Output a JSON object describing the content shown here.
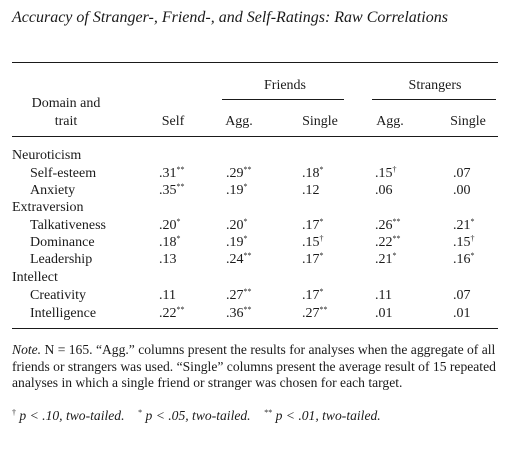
{
  "title": "Accuracy of Stranger-, Friend-, and Self-Ratings: Raw Correlations",
  "header": {
    "group_friends": "Friends",
    "group_strangers": "Strangers",
    "domain_line1": "Domain and",
    "domain_line2": "trait",
    "self": "Self",
    "friends_agg": "Agg.",
    "friends_single": "Single",
    "strangers_agg": "Agg.",
    "strangers_single": "Single"
  },
  "domains": [
    {
      "name": "Neuroticism",
      "rows": [
        {
          "trait": "Self-esteem",
          "cells": [
            [
              ".31",
              "**"
            ],
            [
              ".29",
              "**"
            ],
            [
              ".18",
              "*"
            ],
            [
              ".15",
              "†"
            ],
            [
              ".07",
              ""
            ]
          ]
        },
        {
          "trait": "Anxiety",
          "cells": [
            [
              ".35",
              "**"
            ],
            [
              ".19",
              "*"
            ],
            [
              ".12",
              ""
            ],
            [
              ".06",
              ""
            ],
            [
              ".00",
              ""
            ]
          ]
        }
      ]
    },
    {
      "name": "Extraversion",
      "rows": [
        {
          "trait": "Talkativeness",
          "cells": [
            [
              ".20",
              "*"
            ],
            [
              ".20",
              "*"
            ],
            [
              ".17",
              "*"
            ],
            [
              ".26",
              "**"
            ],
            [
              ".21",
              "*"
            ]
          ]
        },
        {
          "trait": "Dominance",
          "cells": [
            [
              ".18",
              "*"
            ],
            [
              ".19",
              "*"
            ],
            [
              ".15",
              "†"
            ],
            [
              ".22",
              "**"
            ],
            [
              ".15",
              "†"
            ]
          ]
        },
        {
          "trait": "Leadership",
          "cells": [
            [
              ".13",
              ""
            ],
            [
              ".24",
              "**"
            ],
            [
              ".17",
              "*"
            ],
            [
              ".21",
              "*"
            ],
            [
              ".16",
              "*"
            ]
          ]
        }
      ]
    },
    {
      "name": "Intellect",
      "rows": [
        {
          "trait": "Creativity",
          "cells": [
            [
              ".11",
              ""
            ],
            [
              ".27",
              "**"
            ],
            [
              ".17",
              "*"
            ],
            [
              ".11",
              ""
            ],
            [
              ".07",
              ""
            ]
          ]
        },
        {
          "trait": "Intelligence",
          "cells": [
            [
              ".22",
              "**"
            ],
            [
              ".36",
              "**"
            ],
            [
              ".27",
              "**"
            ],
            [
              ".01",
              ""
            ],
            [
              ".01",
              ""
            ]
          ]
        }
      ]
    }
  ],
  "note": {
    "label": "Note.",
    "text": "N = 165. “Agg.” columns present the results for analyses when the aggregate of all friends or strangers was used. “Single” columns present the average result of 15 repeated analyses in which a single friend or stranger was chosen for each target.",
    "legend": [
      {
        "mark": "†",
        "text": "p < .10, two-tailed."
      },
      {
        "mark": "*",
        "text": "p < .05, two-tailed."
      },
      {
        "mark": "**",
        "text": "p < .01, two-tailed."
      }
    ]
  }
}
